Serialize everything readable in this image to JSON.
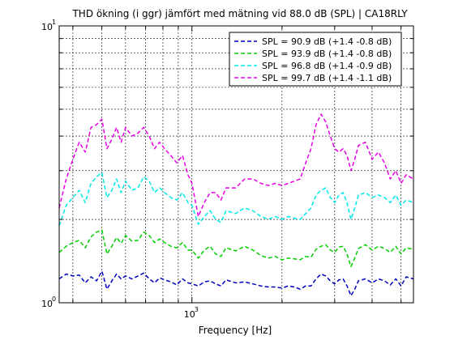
{
  "chart_data": {
    "type": "line",
    "title": "THD ökning (i ggr) jämfört med mätning vid 88.0 dB (SPL) | CA18RLY",
    "xlabel": "Frequency [Hz]",
    "ylabel": "",
    "xscale": "log",
    "yscale": "log",
    "xlim": [
      360,
      5500
    ],
    "ylim": [
      1,
      10
    ],
    "grid": true,
    "legend_position": "top-right",
    "x_tick_labels": [
      {
        "base": "10",
        "exp": "3",
        "value": 1000
      }
    ],
    "y_tick_labels": [
      {
        "base": "10",
        "exp": "0",
        "value": 1
      },
      {
        "base": "10",
        "exp": "1",
        "value": 10
      }
    ],
    "series": [
      {
        "name": "SPL = 90.9 dB (+1.4 -0.8 dB)",
        "color": "#0000bf",
        "x": [
          360,
          380,
          400,
          420,
          440,
          460,
          480,
          500,
          520,
          540,
          560,
          580,
          600,
          630,
          660,
          690,
          720,
          750,
          780,
          810,
          850,
          890,
          930,
          970,
          1000,
          1050,
          1100,
          1150,
          1200,
          1250,
          1300,
          1400,
          1500,
          1600,
          1700,
          1800,
          1900,
          2000,
          2100,
          2200,
          2300,
          2400,
          2500,
          2600,
          2700,
          2800,
          2900,
          3000,
          3100,
          3200,
          3300,
          3400,
          3500,
          3600,
          3800,
          4000,
          4200,
          4400,
          4600,
          4800,
          5000,
          5200,
          5500
        ],
        "y": [
          1.22,
          1.27,
          1.25,
          1.26,
          1.18,
          1.24,
          1.2,
          1.3,
          1.12,
          1.2,
          1.27,
          1.22,
          1.25,
          1.22,
          1.25,
          1.28,
          1.22,
          1.18,
          1.23,
          1.21,
          1.19,
          1.16,
          1.22,
          1.18,
          1.17,
          1.15,
          1.19,
          1.2,
          1.17,
          1.15,
          1.21,
          1.18,
          1.19,
          1.17,
          1.15,
          1.14,
          1.14,
          1.13,
          1.15,
          1.14,
          1.12,
          1.15,
          1.15,
          1.22,
          1.27,
          1.25,
          1.2,
          1.17,
          1.21,
          1.22,
          1.15,
          1.06,
          1.12,
          1.2,
          1.22,
          1.18,
          1.22,
          1.2,
          1.16,
          1.22,
          1.15,
          1.24,
          1.22
        ]
      },
      {
        "name": "SPL = 93.9 dB (+1.4 -0.8 dB)",
        "color": "#00cf00",
        "x": [
          360,
          380,
          400,
          420,
          440,
          460,
          480,
          500,
          520,
          540,
          560,
          580,
          600,
          630,
          660,
          690,
          720,
          750,
          780,
          810,
          850,
          890,
          930,
          970,
          1000,
          1050,
          1100,
          1150,
          1200,
          1250,
          1300,
          1400,
          1500,
          1600,
          1700,
          1800,
          1900,
          2000,
          2100,
          2200,
          2300,
          2400,
          2500,
          2600,
          2700,
          2800,
          2900,
          3000,
          3100,
          3200,
          3300,
          3400,
          3500,
          3600,
          3800,
          4000,
          4200,
          4400,
          4600,
          4800,
          5000,
          5200,
          5500
        ],
        "y": [
          1.52,
          1.6,
          1.65,
          1.68,
          1.58,
          1.73,
          1.8,
          1.83,
          1.5,
          1.6,
          1.72,
          1.64,
          1.75,
          1.67,
          1.68,
          1.8,
          1.75,
          1.65,
          1.7,
          1.65,
          1.6,
          1.58,
          1.65,
          1.55,
          1.55,
          1.45,
          1.55,
          1.6,
          1.5,
          1.47,
          1.58,
          1.54,
          1.6,
          1.55,
          1.48,
          1.45,
          1.47,
          1.43,
          1.45,
          1.44,
          1.43,
          1.47,
          1.46,
          1.56,
          1.6,
          1.62,
          1.55,
          1.52,
          1.59,
          1.6,
          1.5,
          1.35,
          1.45,
          1.57,
          1.62,
          1.55,
          1.6,
          1.57,
          1.52,
          1.6,
          1.5,
          1.58,
          1.56
        ]
      },
      {
        "name": "SPL = 96.8 dB (+1.4 -0.9 dB)",
        "color": "#00e8e8",
        "x": [
          360,
          380,
          400,
          420,
          440,
          460,
          480,
          500,
          520,
          540,
          560,
          580,
          600,
          630,
          660,
          690,
          720,
          750,
          780,
          810,
          850,
          890,
          930,
          970,
          1000,
          1050,
          1100,
          1150,
          1200,
          1250,
          1300,
          1400,
          1500,
          1600,
          1700,
          1800,
          1900,
          2000,
          2100,
          2200,
          2300,
          2400,
          2500,
          2600,
          2700,
          2800,
          2900,
          3000,
          3100,
          3200,
          3300,
          3400,
          3500,
          3600,
          3800,
          4000,
          4200,
          4400,
          4600,
          4800,
          5000,
          5200,
          5500
        ],
        "y": [
          1.9,
          2.25,
          2.4,
          2.55,
          2.3,
          2.7,
          2.85,
          2.95,
          2.4,
          2.55,
          2.8,
          2.5,
          2.75,
          2.55,
          2.6,
          2.85,
          2.75,
          2.5,
          2.6,
          2.5,
          2.4,
          2.35,
          2.5,
          2.3,
          2.25,
          1.92,
          2.05,
          2.15,
          2.0,
          1.95,
          2.15,
          2.1,
          2.2,
          2.15,
          2.05,
          2.0,
          2.05,
          2.0,
          2.05,
          2.02,
          2.0,
          2.1,
          2.2,
          2.45,
          2.55,
          2.6,
          2.4,
          2.3,
          2.45,
          2.5,
          2.3,
          2.0,
          2.2,
          2.45,
          2.5,
          2.4,
          2.45,
          2.4,
          2.3,
          2.45,
          2.25,
          2.35,
          2.3
        ]
      },
      {
        "name": "SPL = 99.7 dB (+1.4 -1.1 dB)",
        "color": "#e800e8",
        "x": [
          360,
          380,
          400,
          420,
          440,
          460,
          480,
          500,
          520,
          540,
          560,
          580,
          600,
          630,
          660,
          690,
          720,
          750,
          780,
          810,
          850,
          890,
          930,
          970,
          1000,
          1050,
          1100,
          1150,
          1200,
          1250,
          1300,
          1400,
          1500,
          1600,
          1700,
          1800,
          1900,
          2000,
          2100,
          2200,
          2300,
          2400,
          2500,
          2600,
          2700,
          2800,
          2900,
          3000,
          3100,
          3200,
          3300,
          3400,
          3500,
          3600,
          3800,
          4000,
          4200,
          4400,
          4600,
          4800,
          5000,
          5200,
          5500
        ],
        "y": [
          2.2,
          2.8,
          3.3,
          3.8,
          3.5,
          4.3,
          4.4,
          4.6,
          3.6,
          3.9,
          4.3,
          3.8,
          4.3,
          4.0,
          4.1,
          4.3,
          4.0,
          3.6,
          3.8,
          3.6,
          3.4,
          3.2,
          3.4,
          2.9,
          2.7,
          2.05,
          2.3,
          2.5,
          2.5,
          2.35,
          2.6,
          2.6,
          2.8,
          2.8,
          2.7,
          2.65,
          2.7,
          2.65,
          2.7,
          2.75,
          2.8,
          3.2,
          3.6,
          4.4,
          4.8,
          4.5,
          4.0,
          3.6,
          3.5,
          3.6,
          3.4,
          3.0,
          3.3,
          3.7,
          3.8,
          3.3,
          3.5,
          3.2,
          2.8,
          3.0,
          2.7,
          2.9,
          2.8
        ]
      }
    ]
  }
}
